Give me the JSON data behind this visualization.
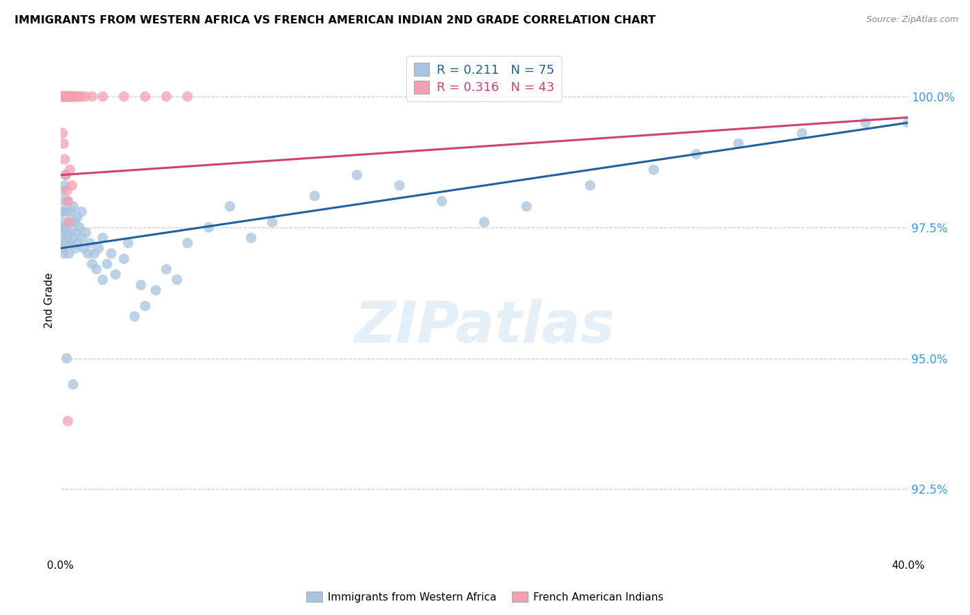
{
  "title": "IMMIGRANTS FROM WESTERN AFRICA VS FRENCH AMERICAN INDIAN 2ND GRADE CORRELATION CHART",
  "source": "Source: ZipAtlas.com",
  "ylabel": "2nd Grade",
  "yticks": [
    92.5,
    95.0,
    97.5,
    100.0
  ],
  "ytick_labels": [
    "92.5%",
    "95.0%",
    "97.5%",
    "100.0%"
  ],
  "xlim": [
    0.0,
    40.0
  ],
  "ylim": [
    91.2,
    101.0
  ],
  "blue_R": 0.211,
  "blue_N": 75,
  "pink_R": 0.316,
  "pink_N": 43,
  "blue_color": "#a8c4e0",
  "pink_color": "#f4a0b0",
  "blue_line_color": "#2060a0",
  "pink_line_color": "#d04070",
  "watermark": "ZIPatlas",
  "legend_label_blue": "Immigrants from Western Africa",
  "legend_label_pink": "French American Indians",
  "blue_line_x0": 0.0,
  "blue_line_y0": 97.1,
  "blue_line_x1": 40.0,
  "blue_line_y1": 99.5,
  "pink_line_x0": 0.0,
  "pink_line_y0": 98.5,
  "pink_line_x1": 40.0,
  "pink_line_y1": 99.6,
  "blue_x": [
    0.05,
    0.05,
    0.07,
    0.08,
    0.1,
    0.1,
    0.12,
    0.15,
    0.15,
    0.18,
    0.2,
    0.2,
    0.25,
    0.25,
    0.3,
    0.3,
    0.35,
    0.35,
    0.4,
    0.4,
    0.45,
    0.5,
    0.5,
    0.55,
    0.6,
    0.6,
    0.7,
    0.7,
    0.75,
    0.8,
    0.8,
    0.9,
    1.0,
    1.0,
    1.1,
    1.2,
    1.3,
    1.4,
    1.5,
    1.6,
    1.7,
    1.8,
    2.0,
    2.0,
    2.2,
    2.4,
    2.6,
    3.0,
    3.2,
    3.5,
    3.8,
    4.0,
    4.5,
    5.0,
    5.5,
    6.0,
    7.0,
    8.0,
    9.0,
    10.0,
    12.0,
    14.0,
    16.0,
    18.0,
    20.0,
    22.0,
    25.0,
    28.0,
    30.0,
    32.0,
    35.0,
    38.0,
    40.0,
    0.3,
    0.6
  ],
  "blue_y": [
    97.8,
    97.5,
    97.3,
    97.1,
    98.2,
    97.6,
    97.4,
    97.8,
    97.0,
    98.0,
    98.3,
    97.2,
    98.5,
    97.5,
    97.8,
    97.4,
    98.0,
    97.2,
    97.6,
    97.0,
    97.4,
    97.8,
    97.2,
    97.6,
    97.9,
    97.3,
    97.6,
    97.1,
    97.4,
    97.7,
    97.2,
    97.5,
    97.8,
    97.3,
    97.1,
    97.4,
    97.0,
    97.2,
    96.8,
    97.0,
    96.7,
    97.1,
    96.5,
    97.3,
    96.8,
    97.0,
    96.6,
    96.9,
    97.2,
    95.8,
    96.4,
    96.0,
    96.3,
    96.7,
    96.5,
    97.2,
    97.5,
    97.9,
    97.3,
    97.6,
    98.1,
    98.5,
    98.3,
    98.0,
    97.6,
    97.9,
    98.3,
    98.6,
    98.9,
    99.1,
    99.3,
    99.5,
    99.5,
    95.0,
    94.5
  ],
  "pink_x": [
    0.05,
    0.08,
    0.1,
    0.12,
    0.15,
    0.18,
    0.2,
    0.22,
    0.25,
    0.28,
    0.3,
    0.32,
    0.35,
    0.38,
    0.4,
    0.42,
    0.45,
    0.48,
    0.5,
    0.55,
    0.6,
    0.65,
    0.7,
    0.8,
    0.9,
    1.0,
    1.2,
    1.5,
    2.0,
    3.0,
    4.0,
    5.0,
    6.0,
    0.15,
    0.2,
    0.25,
    0.3,
    0.35,
    0.4,
    0.1,
    0.55,
    0.45,
    0.35
  ],
  "pink_y": [
    100.0,
    100.0,
    100.0,
    100.0,
    100.0,
    100.0,
    100.0,
    100.0,
    100.0,
    100.0,
    100.0,
    100.0,
    100.0,
    100.0,
    100.0,
    100.0,
    100.0,
    100.0,
    100.0,
    100.0,
    100.0,
    100.0,
    100.0,
    100.0,
    100.0,
    100.0,
    100.0,
    100.0,
    100.0,
    100.0,
    100.0,
    100.0,
    100.0,
    99.1,
    98.8,
    98.5,
    98.2,
    98.0,
    97.6,
    99.3,
    98.3,
    98.6,
    93.8
  ]
}
